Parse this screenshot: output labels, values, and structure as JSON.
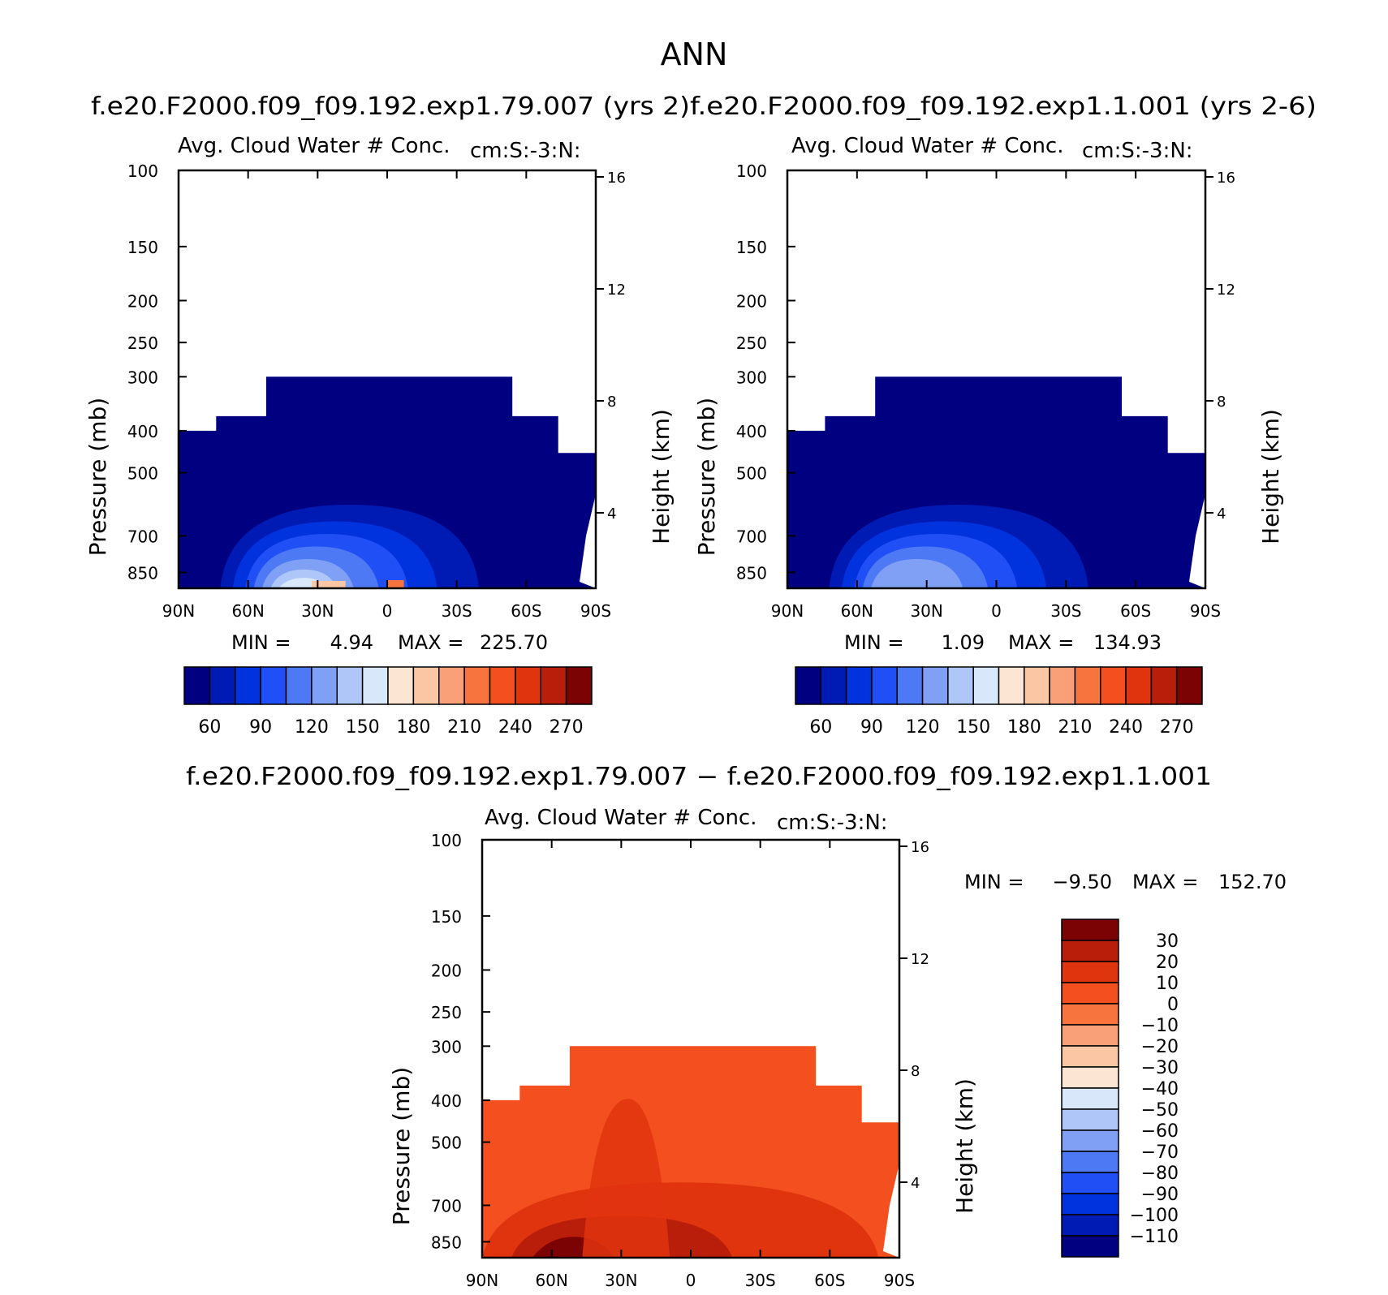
{
  "title": "ANN",
  "colors": {
    "seq_palette": [
      "#000080",
      "#001AB4",
      "#0033DD",
      "#1F4FF5",
      "#4D79F5",
      "#7FA0F5",
      "#AEC7F8",
      "#D8E8FA",
      "#FDE5D3",
      "#FBC6A3",
      "#F9A078",
      "#F8743F",
      "#F4501F",
      "#E0340F",
      "#B81E0A",
      "#7C0303"
    ],
    "diff_palette": [
      "#000080",
      "#001AB4",
      "#0033DD",
      "#1F4FF5",
      "#4D79F5",
      "#7FA0F5",
      "#AEC7F8",
      "#D8E8FA",
      "#FDE5D3",
      "#FBC6A3",
      "#F9A078",
      "#F8743F",
      "#F4501F",
      "#E0340F",
      "#B81E0A",
      "#7C0303"
    ]
  },
  "chart_data": [
    {
      "type": "contour",
      "case_title": "f.e20.F2000.f09_f09.192.exp1.79.007 (yrs 2)",
      "variable": "Avg. Cloud Water # Conc.",
      "units": "cm:S:-3:N:",
      "ylabel": "Pressure (mb)",
      "y2label": "Height (km)",
      "y_ticks": [
        "100",
        "150",
        "200",
        "250",
        "300",
        "400",
        "500",
        "700",
        "850"
      ],
      "y2_ticks": [
        "16",
        "12",
        "8",
        "4"
      ],
      "x_ticks": [
        "90N",
        "60N",
        "30N",
        "0",
        "30S",
        "60S",
        "90S"
      ],
      "min_label": "MIN =",
      "min": "4.94",
      "max_label": "MAX =",
      "max": "225.70",
      "colorbar_labels": [
        "60",
        "90",
        "120",
        "150",
        "180",
        "210",
        "240",
        "270"
      ]
    },
    {
      "type": "contour",
      "case_title": "f.e20.F2000.f09_f09.192.exp1.1.001 (yrs 2-6)",
      "variable": "Avg. Cloud Water # Conc.",
      "units": "cm:S:-3:N:",
      "ylabel": "Pressure (mb)",
      "y2label": "Height (km)",
      "y_ticks": [
        "100",
        "150",
        "200",
        "250",
        "300",
        "400",
        "500",
        "700",
        "850"
      ],
      "y2_ticks": [
        "16",
        "12",
        "8",
        "4"
      ],
      "x_ticks": [
        "90N",
        "60N",
        "30N",
        "0",
        "30S",
        "60S",
        "90S"
      ],
      "min_label": "MIN =",
      "min": "1.09",
      "max_label": "MAX =",
      "max": "134.93",
      "colorbar_labels": [
        "60",
        "90",
        "120",
        "150",
        "180",
        "210",
        "240",
        "270"
      ]
    },
    {
      "type": "contour",
      "case_title": "f.e20.F2000.f09_f09.192.exp1.79.007 − f.e20.F2000.f09_f09.192.exp1.1.001",
      "variable": "Avg. Cloud Water # Conc.",
      "units": "cm:S:-3:N:",
      "ylabel": "Pressure (mb)",
      "y2label": "Height (km)",
      "y_ticks": [
        "100",
        "150",
        "200",
        "250",
        "300",
        "400",
        "500",
        "700",
        "850"
      ],
      "y2_ticks": [
        "16",
        "12",
        "8",
        "4"
      ],
      "x_ticks": [
        "90N",
        "60N",
        "30N",
        "0",
        "30S",
        "60S",
        "90S"
      ],
      "min_label": "MIN =",
      "min": "−9.50",
      "max_label": "MAX =",
      "max": "152.70",
      "colorbar_labels": [
        "30",
        "20",
        "10",
        "0",
        "−10",
        "−20",
        "−30",
        "−40",
        "−50",
        "−60",
        "−70",
        "−80",
        "−90",
        "−100",
        "−110"
      ]
    }
  ]
}
